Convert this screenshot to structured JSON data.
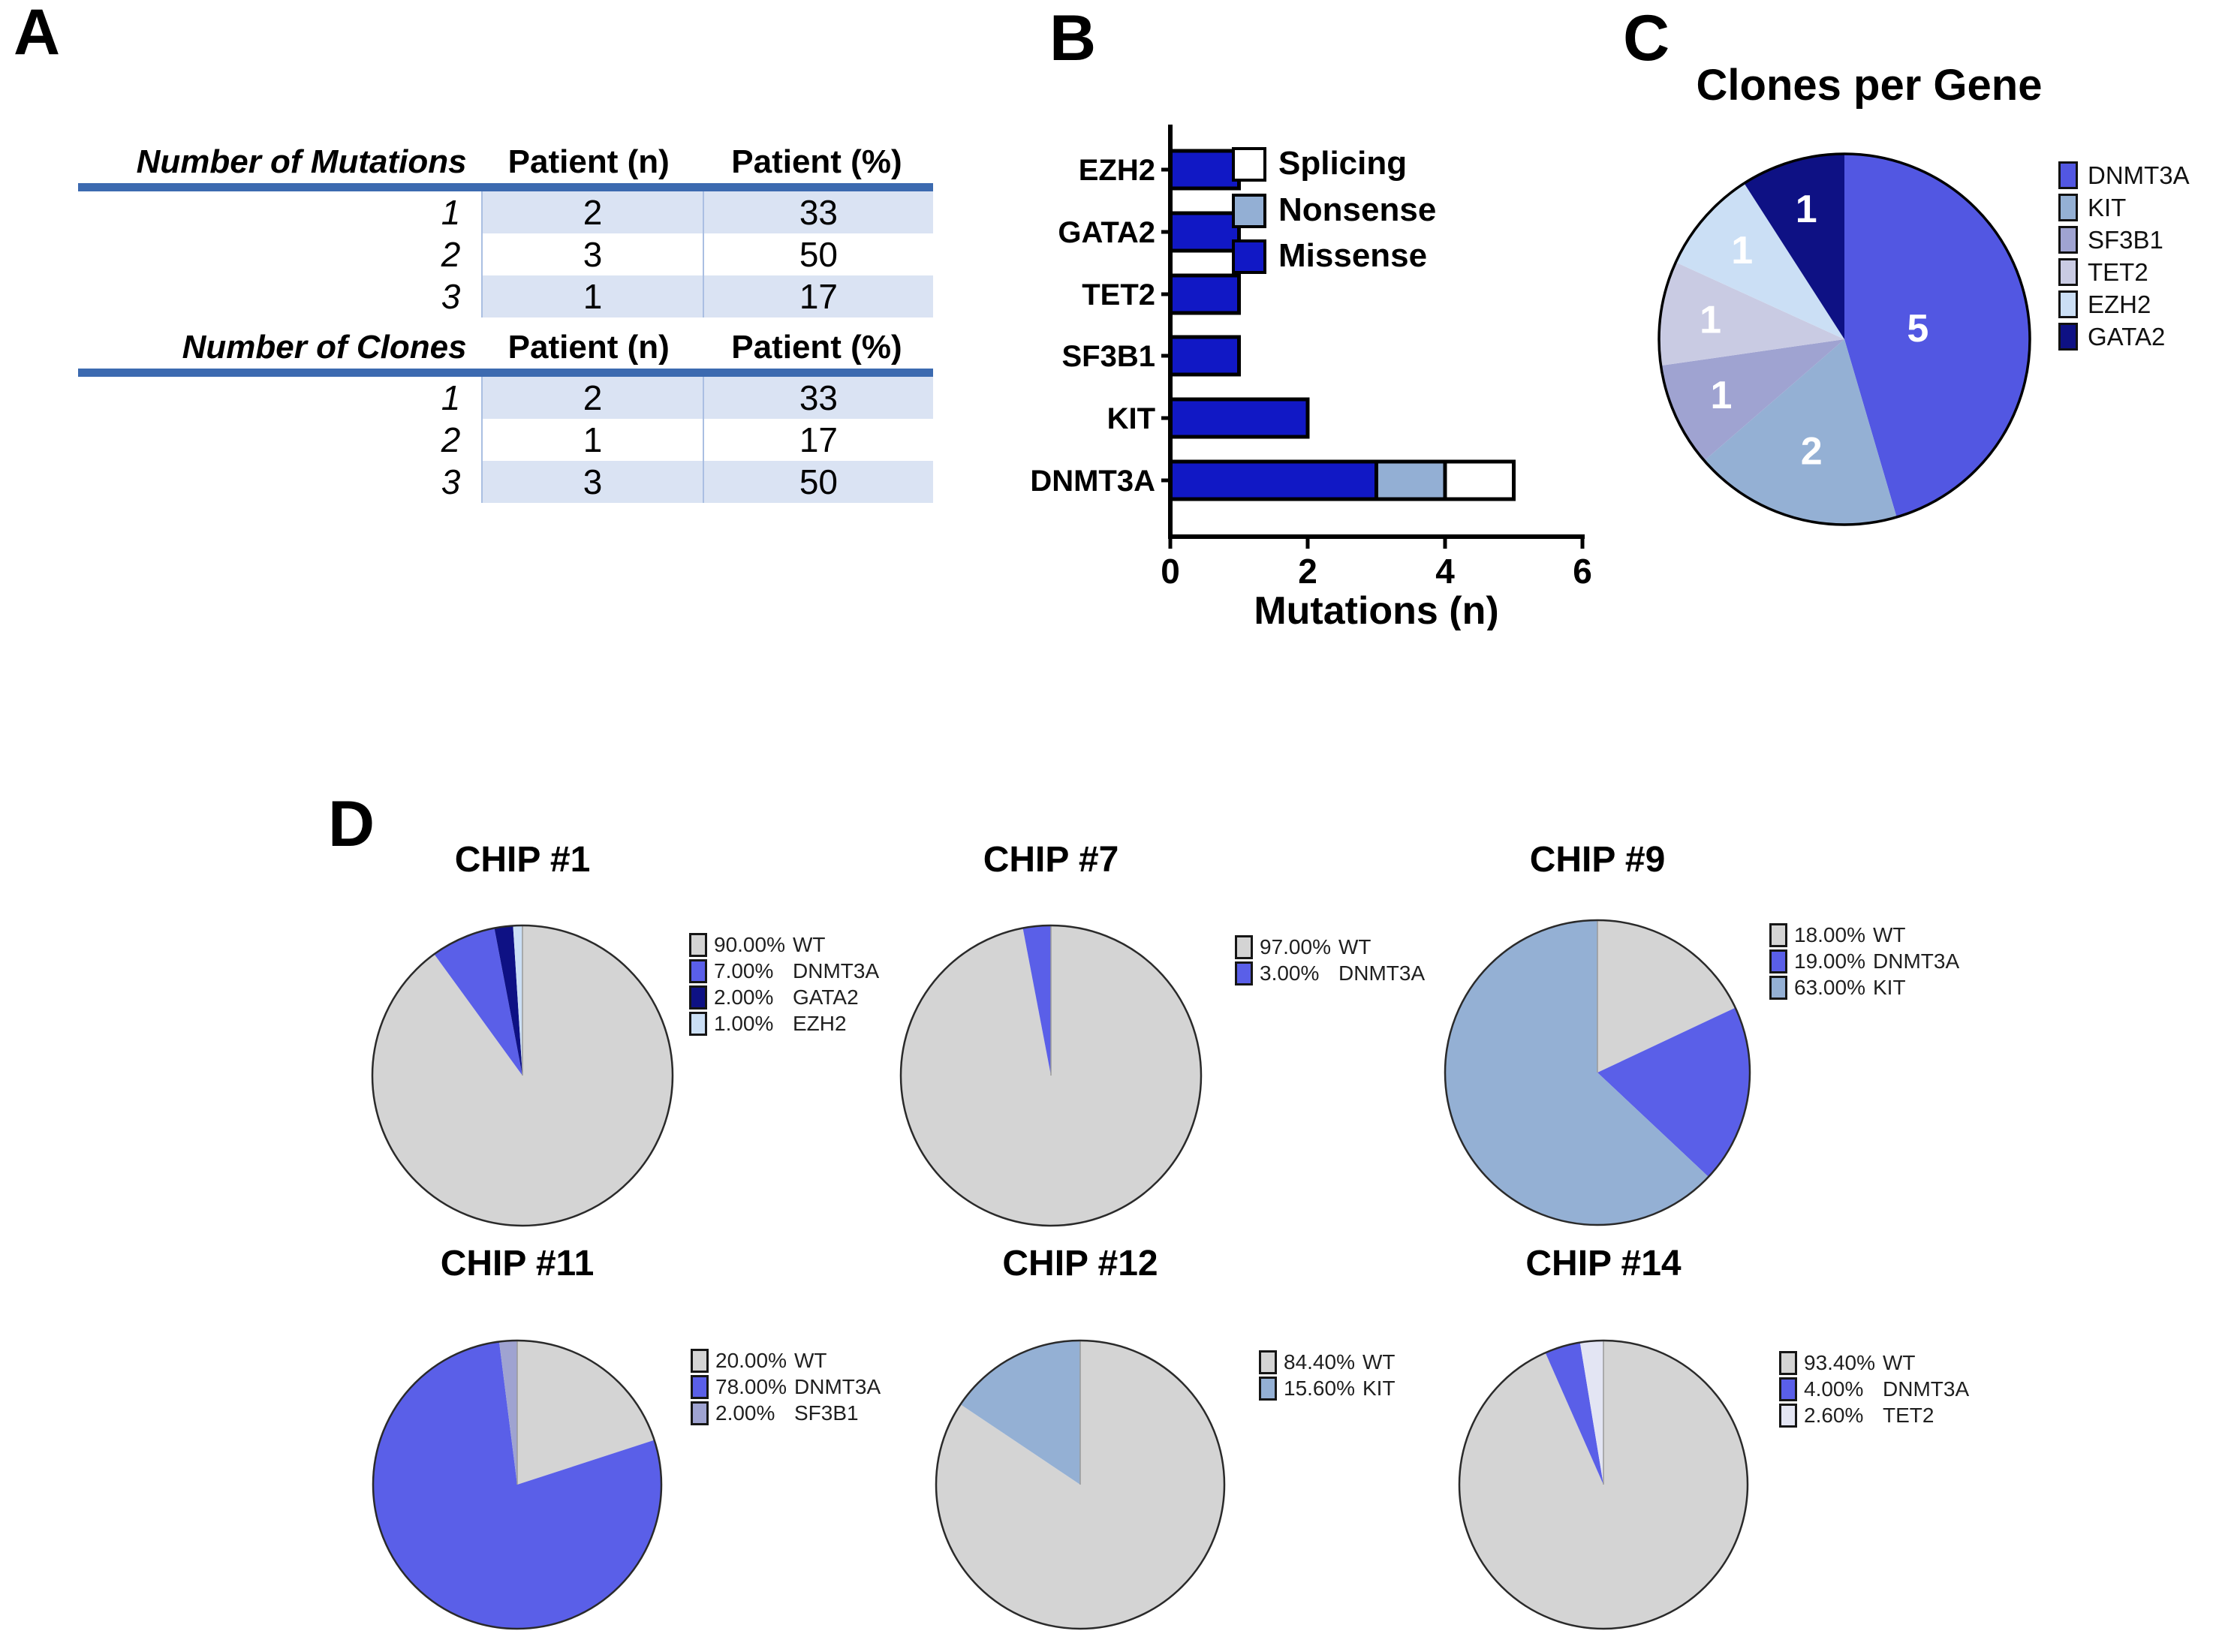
{
  "panels": {
    "a": {
      "label": "A"
    },
    "b": {
      "label": "B"
    },
    "c": {
      "label": "C"
    },
    "d": {
      "label": "D"
    }
  },
  "table_a": {
    "accent_color": "#3c6ab0",
    "shade_color": "#dae3f3",
    "sections": [
      {
        "header": [
          "Number of Mutations",
          "Patient (n)",
          "Patient (%)"
        ],
        "rows": [
          {
            "label": "1",
            "patient_n": "2",
            "patient_pct": "33",
            "shaded": true
          },
          {
            "label": "2",
            "patient_n": "3",
            "patient_pct": "50",
            "shaded": false
          },
          {
            "label": "3",
            "patient_n": "1",
            "patient_pct": "17",
            "shaded": true
          }
        ]
      },
      {
        "header": [
          "Number of Clones",
          "Patient (n)",
          "Patient (%)"
        ],
        "rows": [
          {
            "label": "1",
            "patient_n": "2",
            "patient_pct": "33",
            "shaded": true
          },
          {
            "label": "2",
            "patient_n": "1",
            "patient_pct": "17",
            "shaded": false
          },
          {
            "label": "3",
            "patient_n": "3",
            "patient_pct": "50",
            "shaded": true
          }
        ]
      }
    ]
  },
  "chart_data": [
    {
      "id": "mutations_per_gene",
      "panel": "B",
      "type": "bar",
      "orientation": "horizontal",
      "title": "",
      "xlabel": "Mutations (n)",
      "ylabel": "",
      "xlim": [
        0,
        6
      ],
      "xticks": [
        "0",
        "2",
        "4",
        "6"
      ],
      "grid": false,
      "categories_top_to_bottom": [
        "EZH2",
        "GATA2",
        "TET2",
        "SF3B1",
        "KIT",
        "DNMT3A"
      ],
      "series": [
        {
          "name": "Missense",
          "color": "#1118c5",
          "values": [
            1,
            1,
            1,
            1,
            2,
            3
          ]
        },
        {
          "name": "Nonsense",
          "color": "#93afd4",
          "values": [
            0,
            0,
            0,
            0,
            0,
            1
          ]
        },
        {
          "name": "Splicing",
          "color": "#ffffff",
          "values": [
            0,
            0,
            0,
            0,
            0,
            1
          ]
        }
      ],
      "legend_order_top_to_bottom": [
        "Splicing",
        "Nonsense",
        "Missense"
      ],
      "bar_outline_color": "#000000"
    },
    {
      "id": "clones_per_gene",
      "panel": "C",
      "type": "pie",
      "title": "Clones per Gene",
      "direction": "clockwise",
      "start_at": "top",
      "value_label_color": "#ffffff",
      "legend_position": "right",
      "slices": [
        {
          "label": "DNMT3A",
          "value": 5,
          "color": "#5257e2"
        },
        {
          "label": "KIT",
          "value": 2,
          "color": "#94b0d4"
        },
        {
          "label": "SF3B1",
          "value": 1,
          "color": "#9fa3d1"
        },
        {
          "label": "TET2",
          "value": 1,
          "color": "#c9cbe3"
        },
        {
          "label": "EZH2",
          "value": 1,
          "color": "#cbdff5"
        },
        {
          "label": "GATA2",
          "value": 1,
          "color": "#0e1184"
        }
      ]
    },
    {
      "id": "chip_1",
      "panel": "D",
      "type": "pie",
      "title": "CHIP #1",
      "direction": "clockwise",
      "start_at": "top",
      "slices": [
        {
          "label": "WT",
          "pct_text": "90.00%",
          "value": 90,
          "color": "#d4d4d4"
        },
        {
          "label": "DNMT3A",
          "pct_text": "7.00%",
          "value": 7,
          "color": "#5a5fe8"
        },
        {
          "label": "GATA2",
          "pct_text": "2.00%",
          "value": 2,
          "color": "#0e1184"
        },
        {
          "label": "EZH2",
          "pct_text": "1.00%",
          "value": 1,
          "color": "#cbdff5"
        }
      ]
    },
    {
      "id": "chip_7",
      "panel": "D",
      "type": "pie",
      "title": "CHIP #7",
      "direction": "clockwise",
      "start_at": "top",
      "slices": [
        {
          "label": "WT",
          "pct_text": "97.00%",
          "value": 97,
          "color": "#d4d4d4"
        },
        {
          "label": "DNMT3A",
          "pct_text": "3.00%",
          "value": 3,
          "color": "#5a5fe8"
        }
      ]
    },
    {
      "id": "chip_9",
      "panel": "D",
      "type": "pie",
      "title": "CHIP #9",
      "direction": "clockwise",
      "start_at": "top",
      "slices": [
        {
          "label": "WT",
          "pct_text": "18.00%",
          "value": 18,
          "color": "#d4d4d4"
        },
        {
          "label": "DNMT3A",
          "pct_text": "19.00%",
          "value": 19,
          "color": "#5a5fe8"
        },
        {
          "label": "KIT",
          "pct_text": "63.00%",
          "value": 63,
          "color": "#94b0d4"
        }
      ]
    },
    {
      "id": "chip_11",
      "panel": "D",
      "type": "pie",
      "title": "CHIP #11",
      "direction": "clockwise",
      "start_at": "top",
      "slices": [
        {
          "label": "WT",
          "pct_text": "20.00%",
          "value": 20,
          "color": "#d4d4d4"
        },
        {
          "label": "DNMT3A",
          "pct_text": "78.00%",
          "value": 78,
          "color": "#5a5fe8"
        },
        {
          "label": "SF3B1",
          "pct_text": "2.00%",
          "value": 2,
          "color": "#9fa3d1"
        }
      ]
    },
    {
      "id": "chip_12",
      "panel": "D",
      "type": "pie",
      "title": "CHIP #12",
      "direction": "clockwise",
      "start_at": "top",
      "slices": [
        {
          "label": "WT",
          "pct_text": "84.40%",
          "value": 84.4,
          "color": "#d4d4d4"
        },
        {
          "label": "KIT",
          "pct_text": "15.60%",
          "value": 15.6,
          "color": "#94b0d4"
        }
      ]
    },
    {
      "id": "chip_14",
      "panel": "D",
      "type": "pie",
      "title": "CHIP #14",
      "direction": "clockwise",
      "start_at": "top",
      "slices": [
        {
          "label": "WT",
          "pct_text": "93.40%",
          "value": 93.4,
          "color": "#d4d4d4"
        },
        {
          "label": "DNMT3A",
          "pct_text": "4.00%",
          "value": 4,
          "color": "#5a5fe8"
        },
        {
          "label": "TET2",
          "pct_text": "2.60%",
          "value": 2.6,
          "color": "#e3e5f3"
        }
      ]
    }
  ]
}
